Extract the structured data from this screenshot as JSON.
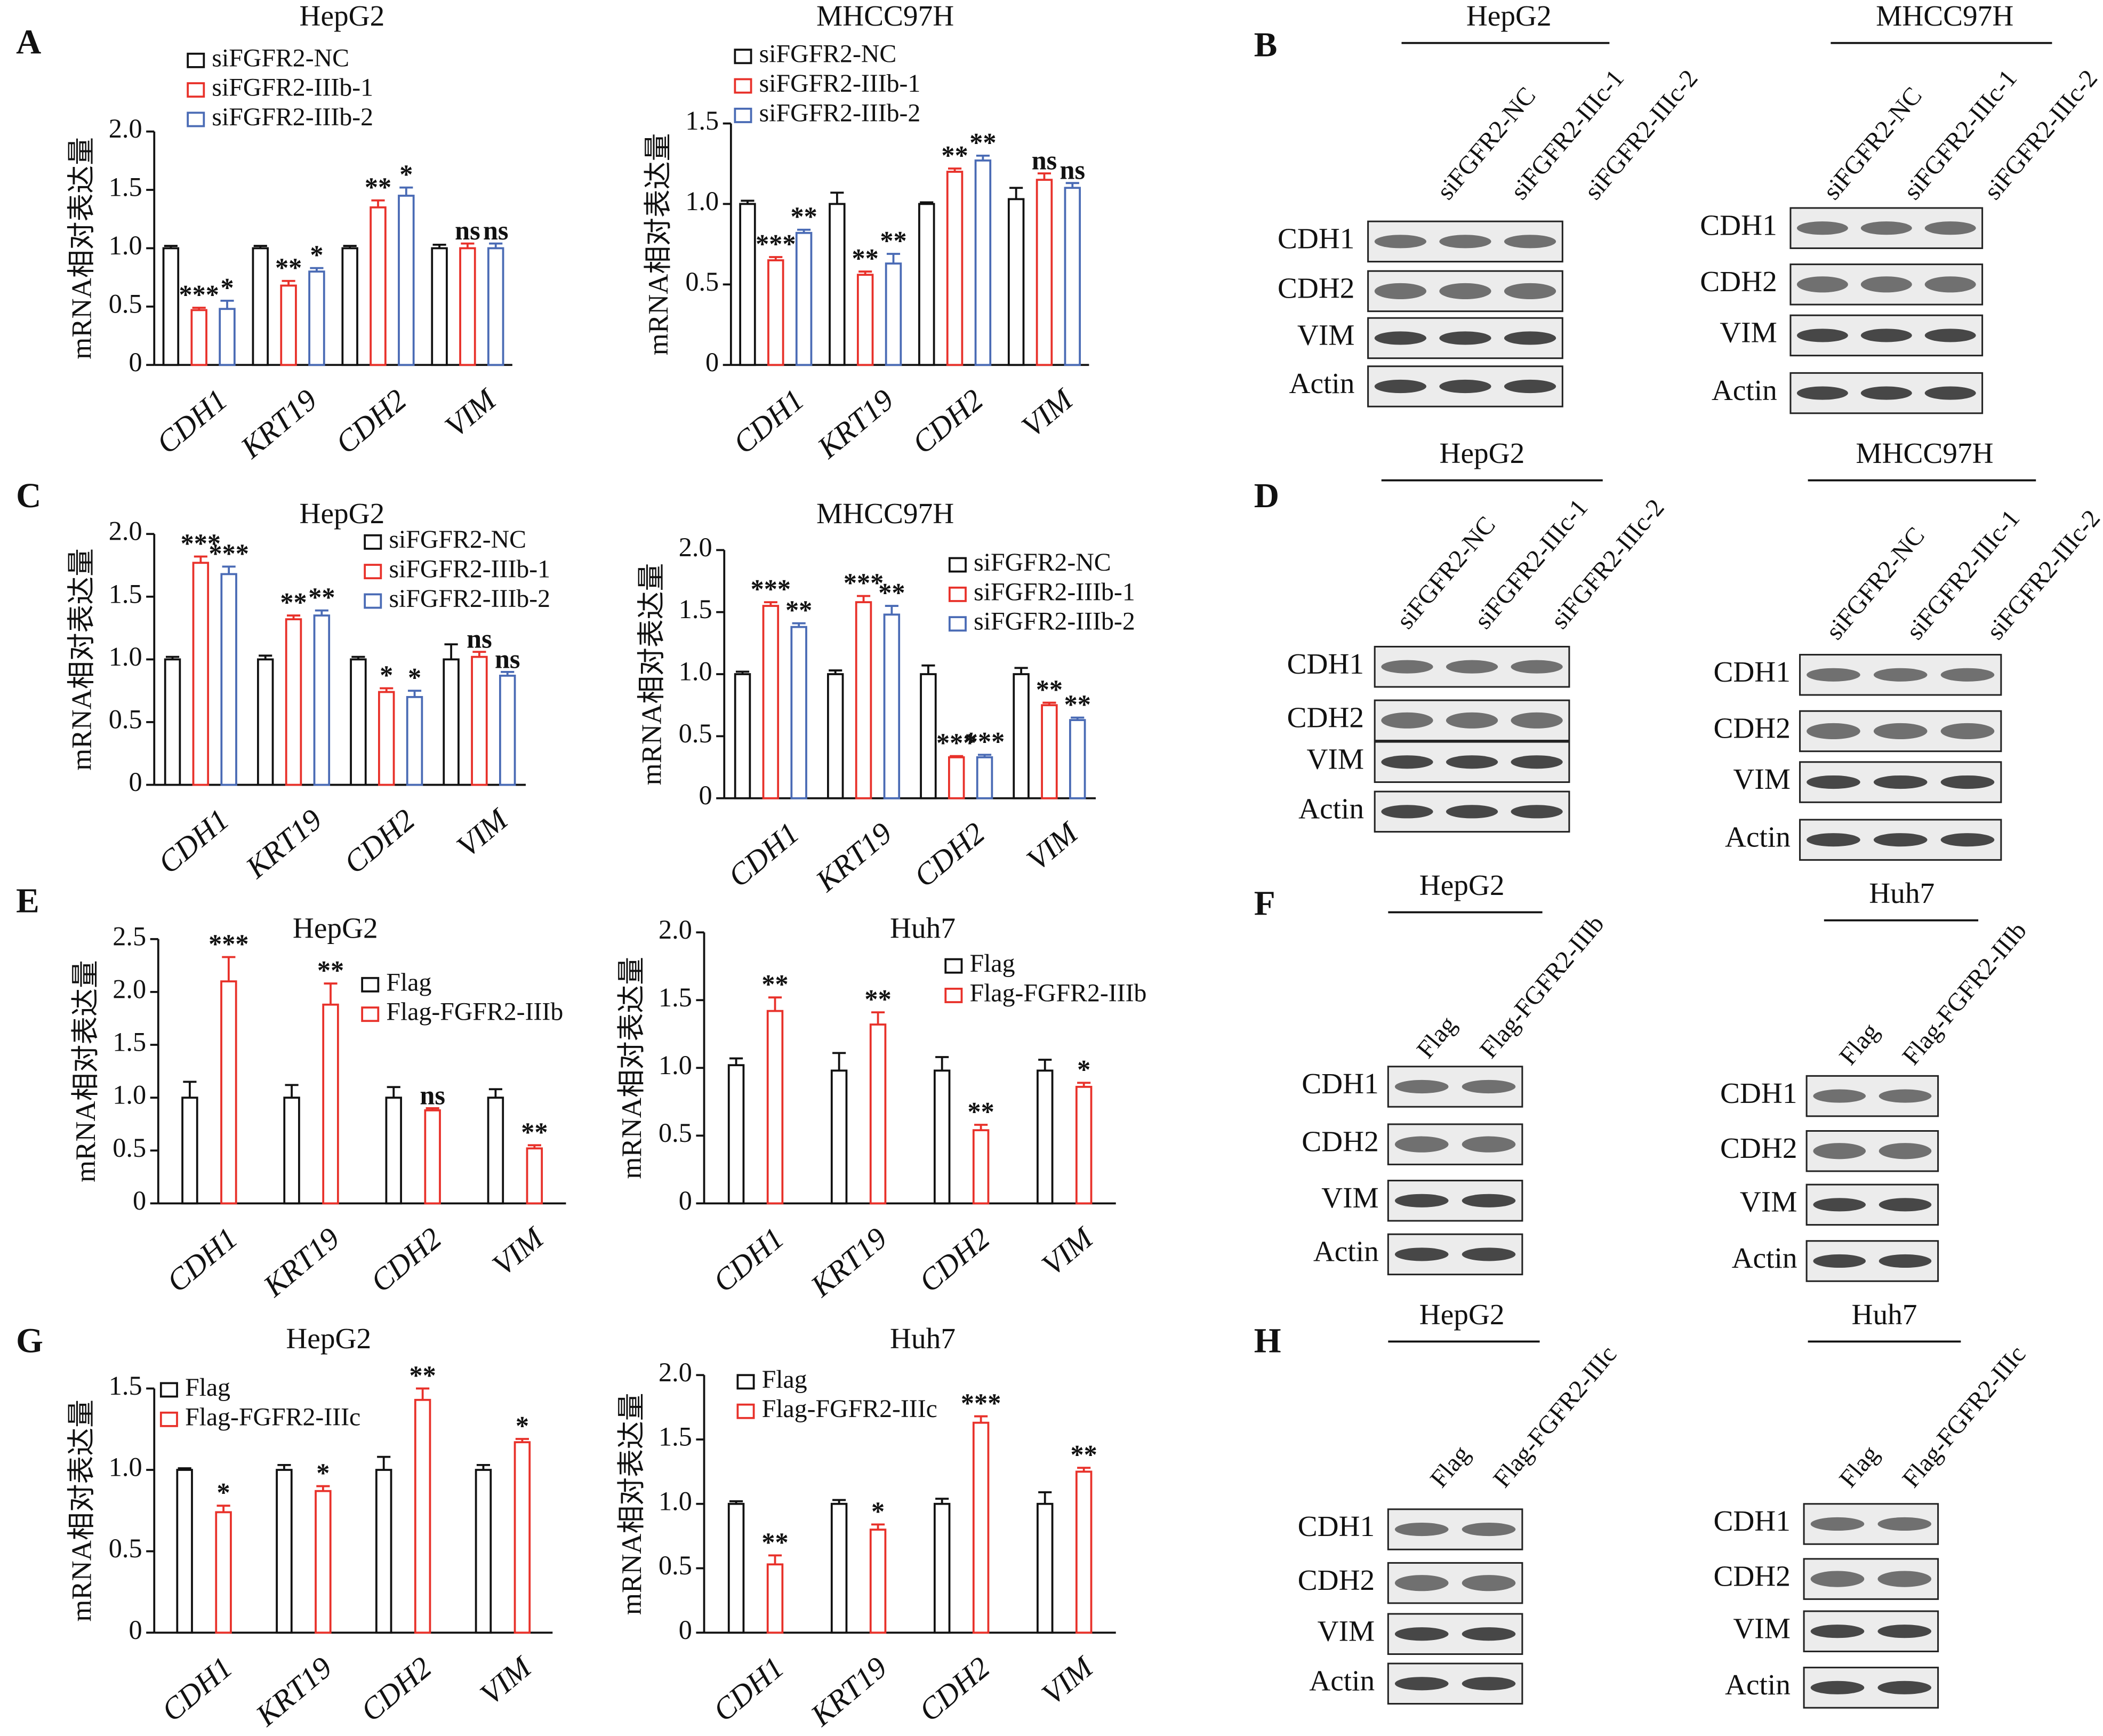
{
  "panel_labels": [
    "A",
    "B",
    "C",
    "D",
    "E",
    "F",
    "G",
    "H"
  ],
  "chart_data": [
    {
      "type": "bar",
      "title": "HepG2",
      "y_label": "mRNA相对表达量",
      "categories": [
        "CDH1",
        "KRT19",
        "CDH2",
        "VIM"
      ],
      "ylim": [
        0,
        2
      ],
      "yticks": [
        0,
        0.5,
        {
          "value": 1,
          "label": "1.0"
        },
        1.5,
        {
          "value": 2,
          "label": "2.0"
        }
      ],
      "series": [
        {
          "name": "siFGFR2-NC",
          "color": "#111111",
          "values": [
            1,
            1,
            1,
            1
          ],
          "errors": [
            0.02,
            0.02,
            0.02,
            0.03
          ],
          "labels": [
            null,
            null,
            null,
            null
          ]
        },
        {
          "name": "siFGFR2-IIIb-1",
          "color": "#e8312a",
          "values": [
            0.47,
            0.68,
            1.35,
            1.0
          ],
          "errors": [
            0.02,
            0.04,
            0.06,
            0.04
          ],
          "labels": [
            "***",
            "**",
            "**",
            "ns"
          ]
        },
        {
          "name": "siFGFR2-IIIb-2",
          "color": "#4a6bb5",
          "values": [
            0.48,
            0.8,
            1.45,
            1.0
          ],
          "errors": [
            0.07,
            0.03,
            0.07,
            0.04
          ],
          "labels": [
            "*",
            "*",
            "*",
            "ns"
          ]
        }
      ]
    },
    {
      "type": "bar",
      "title": "MHCC97H",
      "y_label": "mRNA相对表达量",
      "categories": [
        "CDH1",
        "KRT19",
        "CDH2",
        "VIM"
      ],
      "ylim": [
        0,
        1.5
      ],
      "yticks": [
        0,
        0.5,
        {
          "value": 1,
          "label": "1.0"
        },
        1.5
      ],
      "series": [
        {
          "name": "siFGFR2-NC",
          "color": "#111111",
          "values": [
            1,
            1,
            1,
            1.03
          ],
          "errors": [
            0.02,
            0.07,
            0.01,
            0.07
          ],
          "labels": [
            null,
            null,
            null,
            null
          ]
        },
        {
          "name": "siFGFR2-IIIb-1",
          "color": "#e8312a",
          "values": [
            0.65,
            0.56,
            1.2,
            1.15
          ],
          "errors": [
            0.02,
            0.02,
            0.02,
            0.04
          ],
          "labels": [
            "***",
            "**",
            "**",
            "ns"
          ]
        },
        {
          "name": "siFGFR2-IIIb-2",
          "color": "#4a6bb5",
          "values": [
            0.82,
            0.63,
            1.27,
            1.1
          ],
          "errors": [
            0.02,
            0.06,
            0.03,
            0.03
          ],
          "labels": [
            "**",
            "**",
            "**",
            "ns"
          ]
        }
      ]
    },
    {
      "type": "bar",
      "title": "HepG2",
      "y_label": "mRNA相对表达量",
      "categories": [
        "CDH1",
        "KRT19",
        "CDH2",
        "VIM"
      ],
      "ylim": [
        0,
        2
      ],
      "yticks": [
        0,
        0.5,
        {
          "value": 1,
          "label": "1.0"
        },
        1.5,
        {
          "value": 2,
          "label": "2.0"
        }
      ],
      "series": [
        {
          "name": "siFGFR2-NC",
          "color": "#111111",
          "values": [
            1,
            1,
            1,
            1
          ],
          "errors": [
            0.02,
            0.03,
            0.02,
            0.12
          ],
          "labels": [
            null,
            null,
            null,
            null
          ]
        },
        {
          "name": "siFGFR2-IIIb-1",
          "color": "#e8312a",
          "values": [
            1.77,
            1.32,
            0.74,
            1.02
          ],
          "errors": [
            0.05,
            0.03,
            0.03,
            0.04
          ],
          "labels": [
            "***",
            "**",
            "*",
            "ns"
          ]
        },
        {
          "name": "siFGFR2-IIIb-2",
          "color": "#4a6bb5",
          "values": [
            1.68,
            1.35,
            0.7,
            0.87
          ],
          "errors": [
            0.06,
            0.04,
            0.05,
            0.03
          ],
          "labels": [
            "***",
            "**",
            "*",
            "ns"
          ]
        }
      ]
    },
    {
      "type": "bar",
      "title": "MHCC97H",
      "y_label": "mRNA相对表达量",
      "categories": [
        "CDH1",
        "KRT19",
        "CDH2",
        "VIM"
      ],
      "ylim": [
        0,
        2
      ],
      "yticks": [
        0,
        0.5,
        {
          "value": 1,
          "label": "1.0"
        },
        1.5,
        {
          "value": 2,
          "label": "2.0"
        }
      ],
      "series": [
        {
          "name": "siFGFR2-NC",
          "color": "#111111",
          "values": [
            1,
            1,
            1,
            1
          ],
          "errors": [
            0.02,
            0.03,
            0.07,
            0.05
          ],
          "labels": [
            null,
            null,
            null,
            null
          ]
        },
        {
          "name": "siFGFR2-IIIb-1",
          "color": "#e8312a",
          "values": [
            1.55,
            1.58,
            0.33,
            0.75
          ],
          "errors": [
            0.03,
            0.05,
            0.01,
            0.02
          ],
          "labels": [
            "***",
            "***",
            "***",
            "**"
          ]
        },
        {
          "name": "siFGFR2-IIIb-2",
          "color": "#4a6bb5",
          "values": [
            1.38,
            1.48,
            0.33,
            0.63
          ],
          "errors": [
            0.03,
            0.07,
            0.02,
            0.02
          ],
          "labels": [
            "**",
            "**",
            "***",
            "**"
          ]
        }
      ]
    },
    {
      "type": "bar",
      "title": "HepG2",
      "y_label": "mRNA相对表达量",
      "categories": [
        "CDH1",
        "KRT19",
        "CDH2",
        "VIM"
      ],
      "ylim": [
        0,
        2.5
      ],
      "yticks": [
        0,
        0.5,
        {
          "value": 1,
          "label": "1.0"
        },
        1.5,
        {
          "value": 2,
          "label": "2.0"
        },
        2.5
      ],
      "series": [
        {
          "name": "Flag",
          "color": "#111111",
          "values": [
            1,
            1,
            1,
            1
          ],
          "errors": [
            0.15,
            0.12,
            0.1,
            0.08
          ],
          "labels": [
            null,
            null,
            null,
            null
          ]
        },
        {
          "name": "Flag-FGFR2-IIIb",
          "color": "#e8312a",
          "values": [
            2.1,
            1.88,
            0.88,
            0.52
          ],
          "errors": [
            0.23,
            0.2,
            0.02,
            0.03
          ],
          "labels": [
            "***",
            "**",
            "ns",
            "**"
          ]
        }
      ]
    },
    {
      "type": "bar",
      "title": "Huh7",
      "y_label": "mRNA相对表达量",
      "categories": [
        "CDH1",
        "KRT19",
        "CDH2",
        "VIM"
      ],
      "ylim": [
        0,
        2
      ],
      "yticks": [
        0,
        0.5,
        {
          "value": 1,
          "label": "1.0"
        },
        1.5,
        {
          "value": 2,
          "label": "2.0"
        }
      ],
      "series": [
        {
          "name": "Flag",
          "color": "#111111",
          "values": [
            1.02,
            0.98,
            0.98,
            0.98
          ],
          "errors": [
            0.05,
            0.13,
            0.1,
            0.08
          ],
          "labels": [
            null,
            null,
            null,
            null
          ]
        },
        {
          "name": "Flag-FGFR2-IIIb",
          "color": "#e8312a",
          "values": [
            1.42,
            1.32,
            0.54,
            0.86
          ],
          "errors": [
            0.1,
            0.09,
            0.04,
            0.03
          ],
          "labels": [
            "**",
            "**",
            "**",
            "*"
          ]
        }
      ]
    },
    {
      "type": "bar",
      "title": "HepG2",
      "y_label": "mRNA相对表达量",
      "categories": [
        "CDH1",
        "KRT19",
        "CDH2",
        "VIM"
      ],
      "ylim": [
        0,
        1.5
      ],
      "yticks": [
        0,
        0.5,
        {
          "value": 1,
          "label": "1.0"
        },
        1.5
      ],
      "series": [
        {
          "name": "Flag",
          "color": "#111111",
          "values": [
            1,
            1,
            1,
            1
          ],
          "errors": [
            0.01,
            0.03,
            0.08,
            0.03
          ],
          "labels": [
            null,
            null,
            null,
            null
          ]
        },
        {
          "name": "Flag-FGFR2-IIIc",
          "color": "#e8312a",
          "values": [
            0.74,
            0.87,
            1.43,
            1.17
          ],
          "errors": [
            0.04,
            0.03,
            0.07,
            0.02
          ],
          "labels": [
            "*",
            "*",
            "**",
            "*"
          ]
        }
      ]
    },
    {
      "type": "bar",
      "title": "Huh7",
      "y_label": "mRNA相对表达量",
      "categories": [
        "CDH1",
        "KRT19",
        "CDH2",
        "VIM"
      ],
      "ylim": [
        0,
        2
      ],
      "yticks": [
        0,
        0.5,
        {
          "value": 1,
          "label": "1.0"
        },
        1.5,
        {
          "value": 2,
          "label": "2.0"
        }
      ],
      "series": [
        {
          "name": "Flag",
          "color": "#111111",
          "values": [
            1,
            1,
            1,
            1
          ],
          "errors": [
            0.02,
            0.03,
            0.04,
            0.09
          ],
          "labels": [
            null,
            null,
            null,
            null
          ]
        },
        {
          "name": "Flag-FGFR2-IIIc",
          "color": "#e8312a",
          "values": [
            0.53,
            0.8,
            1.63,
            1.25
          ],
          "errors": [
            0.07,
            0.04,
            0.05,
            0.03
          ],
          "labels": [
            "**",
            "*",
            "***",
            "**"
          ]
        }
      ]
    }
  ],
  "blots": [
    {
      "title": "HepG2",
      "lanes": [
        "siFGFR2-NC",
        "siFGFR2-IIIc-1",
        "siFGFR2-IIIc-2"
      ],
      "rows": [
        "CDH1",
        "CDH2",
        "VIM",
        "Actin"
      ]
    },
    {
      "title": "MHCC97H",
      "lanes": [
        "siFGFR2-NC",
        "siFGFR2-IIIc-1",
        "siFGFR2-IIIc-2"
      ],
      "rows": [
        "CDH1",
        "CDH2",
        "VIM",
        "Actin"
      ]
    },
    {
      "title": "HepG2",
      "lanes": [
        "siFGFR2-NC",
        "siFGFR2-IIIc-1",
        "siFGFR2-IIIc-2"
      ],
      "rows": [
        "CDH1",
        "CDH2",
        "VIM",
        "Actin"
      ]
    },
    {
      "title": "MHCC97H",
      "lanes": [
        "siFGFR2-NC",
        "siFGFR2-IIIc-1",
        "siFGFR2-IIIc-2"
      ],
      "rows": [
        "CDH1",
        "CDH2",
        "VIM",
        "Actin"
      ]
    },
    {
      "title": "HepG2",
      "lanes": [
        "Flag",
        "Flag-FGFR2-IIIb"
      ],
      "rows": [
        "CDH1",
        "CDH2",
        "VIM",
        "Actin"
      ]
    },
    {
      "title": "Huh7",
      "lanes": [
        "Flag",
        "Flag-FGFR2-IIIb"
      ],
      "rows": [
        "CDH1",
        "CDH2",
        "VIM",
        "Actin"
      ]
    },
    {
      "title": "HepG2",
      "lanes": [
        "Flag",
        "Flag-FGFR2-IIIc"
      ],
      "rows": [
        "CDH1",
        "CDH2",
        "VIM",
        "Actin"
      ]
    },
    {
      "title": "Huh7",
      "lanes": [
        "Flag",
        "Flag-FGFR2-IIIc"
      ],
      "rows": [
        "CDH1",
        "CDH2",
        "VIM",
        "Actin"
      ]
    }
  ]
}
